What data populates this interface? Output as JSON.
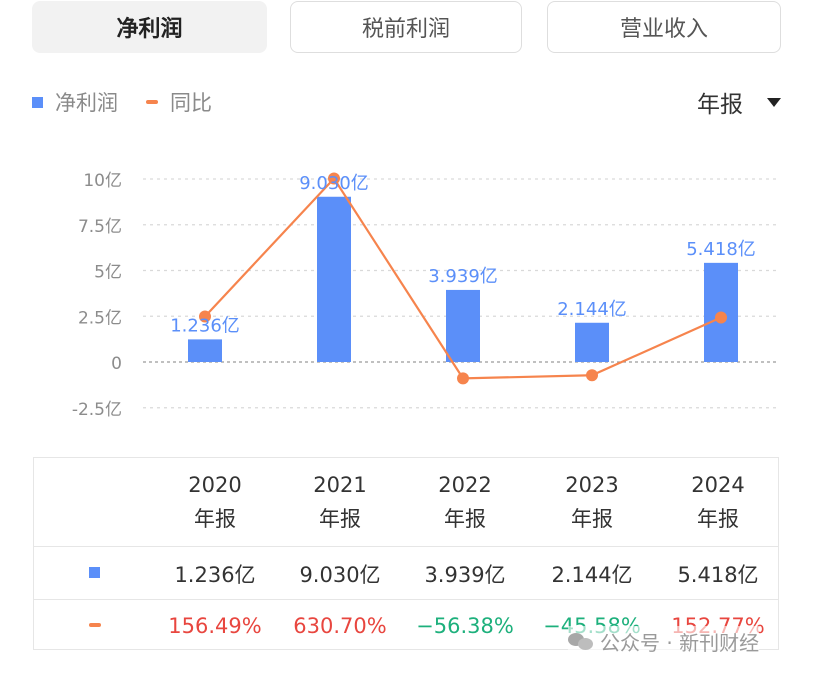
{
  "tabs": [
    {
      "label": "净利润",
      "active": true
    },
    {
      "label": "税前利润",
      "active": false
    },
    {
      "label": "营业收入",
      "active": false
    }
  ],
  "legend": {
    "bar": "净利润",
    "line": "同比"
  },
  "period_select": {
    "value": "年报",
    "icon": "caret-down-icon"
  },
  "colors": {
    "bar": "#5b8ff9",
    "line": "#f6844d",
    "positive": "#e8463f",
    "negative": "#1db07c"
  },
  "chart_data": {
    "type": "bar",
    "categories": [
      "2020年报",
      "2021年报",
      "2022年报",
      "2023年报",
      "2024年报"
    ],
    "y_ticks": [
      "10亿",
      "7.5亿",
      "5亿",
      "2.5亿",
      "0",
      "-2.5亿"
    ],
    "ylim": [
      -2.5,
      10
    ],
    "grid": true,
    "series": [
      {
        "name": "净利润",
        "type": "bar",
        "unit": "亿",
        "values": [
          1.236,
          9.03,
          3.939,
          2.144,
          5.418
        ],
        "labels": [
          "1.236亿",
          "9.030亿",
          "3.939亿",
          "2.144亿",
          "5.418亿"
        ]
      },
      {
        "name": "同比",
        "type": "line",
        "unit": "%",
        "values": [
          156.49,
          630.7,
          -56.38,
          -45.58,
          152.77
        ]
      }
    ]
  },
  "table": {
    "columns": [
      {
        "year": "2020",
        "period": "年报"
      },
      {
        "year": "2021",
        "period": "年报"
      },
      {
        "year": "2022",
        "period": "年报"
      },
      {
        "year": "2023",
        "period": "年报"
      },
      {
        "year": "2024",
        "period": "年报"
      }
    ],
    "net_profit": [
      "1.236亿",
      "9.030亿",
      "3.939亿",
      "2.144亿",
      "5.418亿"
    ],
    "yoy": [
      "156.49%",
      "630.70%",
      "−56.38%",
      "−45.58%",
      "152.77%"
    ]
  },
  "watermark": {
    "text": "公众号 · 新刊财经",
    "icon": "wechat-icon"
  }
}
